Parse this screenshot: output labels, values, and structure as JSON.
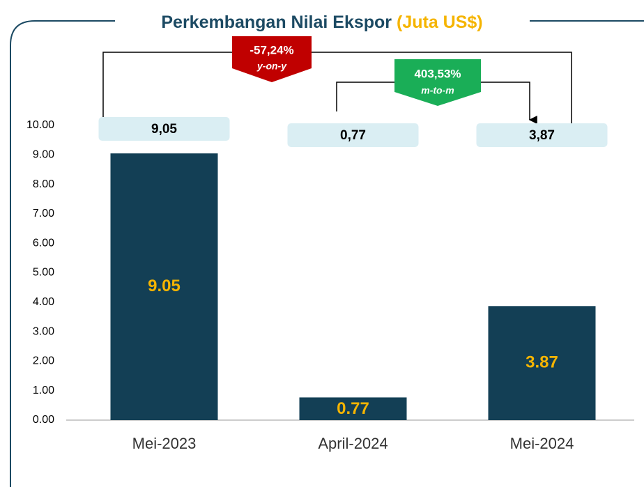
{
  "chart_data": {
    "type": "bar",
    "title": "Perkembangan Nilai Ekspor",
    "subtitle": "(Juta US$)",
    "categories": [
      "Mei-2023",
      "April-2024",
      "Mei-2024"
    ],
    "values": [
      9.05,
      0.77,
      3.87
    ],
    "value_labels": [
      "9,05",
      "0,77",
      "3,87"
    ],
    "color": "#133f55",
    "ylim": [
      0,
      10
    ],
    "yticks": [
      {
        "value": 0,
        "label": "0.00"
      },
      {
        "value": 1,
        "label": "1.00"
      },
      {
        "value": 2,
        "label": "2.00"
      },
      {
        "value": 3,
        "label": "3.00"
      },
      {
        "value": 4,
        "label": "4.00"
      },
      {
        "value": 5,
        "label": "5.00"
      },
      {
        "value": 6,
        "label": "6.00"
      },
      {
        "value": 7,
        "label": "7.00"
      },
      {
        "value": 8,
        "label": "8.00"
      },
      {
        "value": 9,
        "label": "9.00"
      },
      {
        "value": 10,
        "label": "10.00"
      }
    ],
    "annotations": [
      {
        "value": "-57,24%",
        "label": "y-on-y"
      },
      {
        "value": "403,53%",
        "label": "m-to-m"
      }
    ]
  }
}
